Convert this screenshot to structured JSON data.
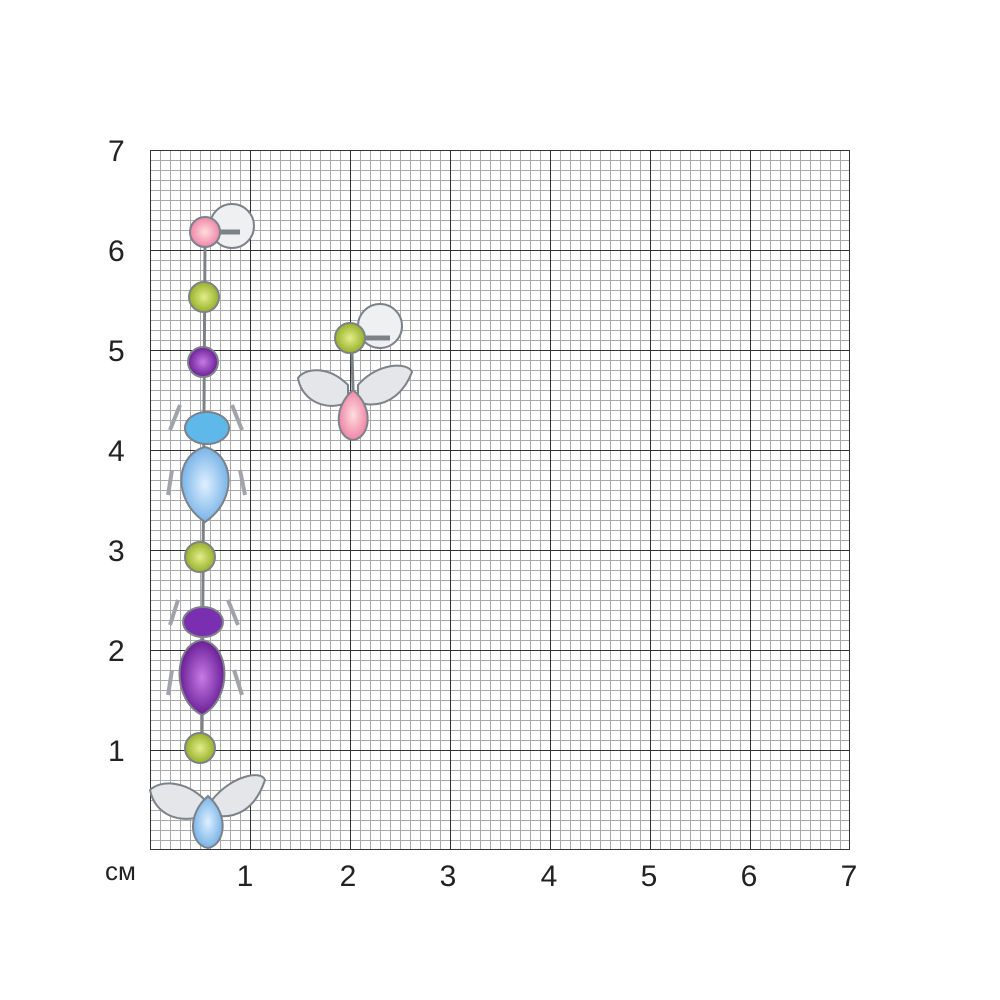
{
  "unit_label": "см",
  "y_ticks": [
    "1",
    "2",
    "3",
    "4",
    "5",
    "6",
    "7"
  ],
  "x_ticks": [
    "1",
    "2",
    "3",
    "4",
    "5",
    "6",
    "7"
  ],
  "colors": {
    "major_grid": "#333333",
    "minor_grid": "#aaaaaa",
    "pink": "#f59ab5",
    "green": "#a9c23a",
    "purple": "#7b2fa8",
    "light_blue": "#8ec4ef",
    "silver": "#c9ccd1"
  }
}
